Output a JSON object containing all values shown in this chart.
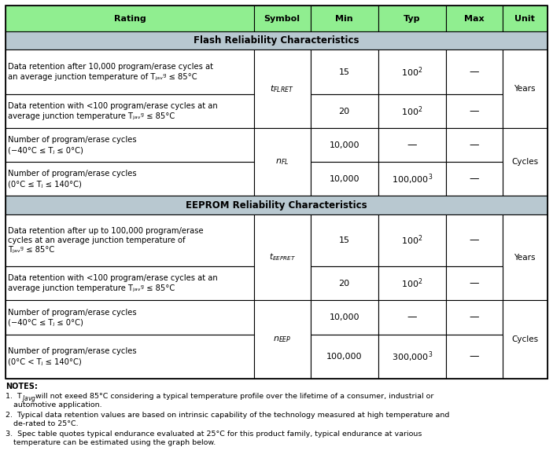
{
  "header_bg": "#90EE90",
  "section_bg": "#B8C8D0",
  "cell_bg": "#FFFFFF",
  "border_color": "#000000",
  "figsize": [
    7.03,
    5.97
  ],
  "dpi": 100,
  "col_widths_rel": [
    44,
    10,
    12,
    12,
    10,
    8
  ],
  "col_labels": [
    "Rating",
    "Symbol",
    "Min",
    "Typ",
    "Max",
    "Unit"
  ],
  "flash_section": "Flash Reliability Characteristics",
  "eeprom_section": "EEPROM Reliability Characteristics",
  "row_heights_rel": [
    5.0,
    3.5,
    8.5,
    6.5,
    6.5,
    6.5,
    3.5,
    10.0,
    6.5,
    6.5,
    8.5
  ],
  "notes_lines": [
    [
      "NOTES:",
      true
    ],
    [
      "1.  T",
      false
    ],
    [
      "2.  Typical data retention values are based on intrinsic capability of the technology measured at high temperature and\n    de-rated to 25°C.",
      false
    ],
    [
      "3.  Spec table quotes typical endurance evaluated at 25°C for this product family, typical endurance at various\n    temperature can be estimated using the graph below.",
      false
    ]
  ]
}
